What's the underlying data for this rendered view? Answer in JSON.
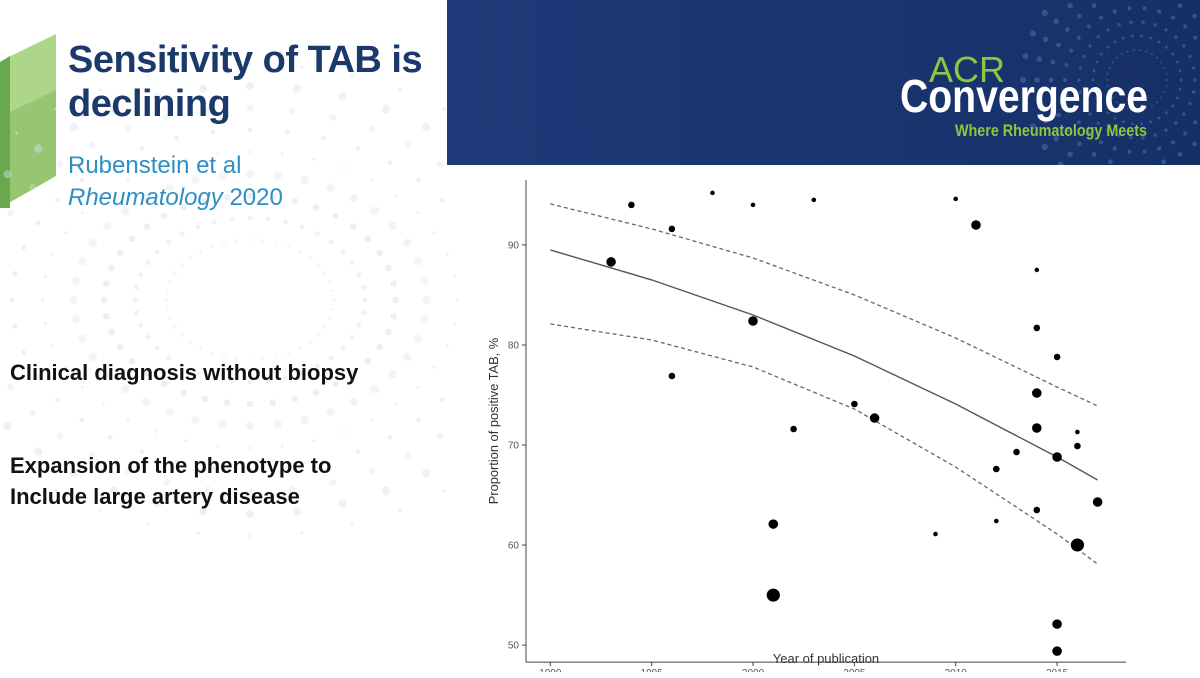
{
  "slide": {
    "title": "Sensitivity of TAB is declining",
    "citation_authors": "Rubenstein et al",
    "citation_journal": "Rheumatology",
    "citation_year": "2020",
    "bullets": [
      "Clinical diagnosis without biopsy",
      "Expansion of the phenotype to",
      "Include large artery disease"
    ]
  },
  "logo": {
    "top_text": "ACR",
    "main_text": "Convergence",
    "tagline": "Where Rheumatology Meets"
  },
  "colors": {
    "title": "#1b3a6b",
    "citation": "#2f8fc4",
    "banner": "#1e3a78",
    "logo_green": "#8dc63f",
    "deco_green": "#8cc063"
  },
  "chart_data": {
    "type": "scatter",
    "xlabel": "Year of publication",
    "ylabel": "Proportion of positive TAB, %",
    "xlim": [
      1988.8,
      2018.4
    ],
    "ylim": [
      48.3,
      96.5
    ],
    "xticks": [
      1990,
      1995,
      2000,
      2005,
      2010,
      2015
    ],
    "yticks": [
      50,
      60,
      70,
      80,
      90
    ],
    "grid": false,
    "points": [
      {
        "x": 1993,
        "y": 88.3,
        "size": "medium"
      },
      {
        "x": 1994,
        "y": 94.0,
        "size": "small"
      },
      {
        "x": 1996,
        "y": 91.6,
        "size": "small"
      },
      {
        "x": 1996,
        "y": 76.9,
        "size": "small"
      },
      {
        "x": 1998,
        "y": 95.2,
        "size": "xsmall"
      },
      {
        "x": 2000,
        "y": 94.0,
        "size": "xsmall"
      },
      {
        "x": 2000,
        "y": 82.4,
        "size": "medium"
      },
      {
        "x": 2001,
        "y": 62.1,
        "size": "medium"
      },
      {
        "x": 2001,
        "y": 55.0,
        "size": "large"
      },
      {
        "x": 2002,
        "y": 71.6,
        "size": "small"
      },
      {
        "x": 2003,
        "y": 94.5,
        "size": "xsmall"
      },
      {
        "x": 2005,
        "y": 74.1,
        "size": "small"
      },
      {
        "x": 2006,
        "y": 72.7,
        "size": "medium"
      },
      {
        "x": 2009,
        "y": 61.1,
        "size": "xsmall"
      },
      {
        "x": 2010,
        "y": 94.6,
        "size": "xsmall"
      },
      {
        "x": 2011,
        "y": 92.0,
        "size": "medium"
      },
      {
        "x": 2012,
        "y": 67.6,
        "size": "small"
      },
      {
        "x": 2012,
        "y": 62.4,
        "size": "xsmall"
      },
      {
        "x": 2013,
        "y": 69.3,
        "size": "small"
      },
      {
        "x": 2014,
        "y": 87.5,
        "size": "xsmall"
      },
      {
        "x": 2014,
        "y": 81.7,
        "size": "small"
      },
      {
        "x": 2014,
        "y": 75.2,
        "size": "medium"
      },
      {
        "x": 2014,
        "y": 71.7,
        "size": "medium"
      },
      {
        "x": 2014,
        "y": 63.5,
        "size": "small"
      },
      {
        "x": 2015,
        "y": 78.8,
        "size": "small"
      },
      {
        "x": 2015,
        "y": 68.8,
        "size": "medium"
      },
      {
        "x": 2015,
        "y": 52.1,
        "size": "medium"
      },
      {
        "x": 2015,
        "y": 49.4,
        "size": "medium"
      },
      {
        "x": 2016,
        "y": 71.3,
        "size": "xsmall"
      },
      {
        "x": 2016,
        "y": 69.9,
        "size": "small"
      },
      {
        "x": 2016,
        "y": 60.0,
        "size": "large"
      },
      {
        "x": 2017,
        "y": 64.3,
        "size": "medium"
      }
    ],
    "fit_line": {
      "style": "solid",
      "x": [
        1990,
        1995,
        2000,
        2005,
        2010,
        2015,
        2017
      ],
      "y": [
        89.5,
        86.5,
        83.0,
        78.9,
        74.1,
        68.8,
        66.5
      ]
    },
    "ci_upper": {
      "style": "dashed",
      "x": [
        1990,
        1995,
        2000,
        2005,
        2010,
        2015,
        2017
      ],
      "y": [
        94.1,
        91.6,
        88.7,
        85.0,
        80.7,
        75.8,
        73.9
      ]
    },
    "ci_lower": {
      "style": "dashed",
      "x": [
        1990,
        1995,
        2000,
        2005,
        2010,
        2015,
        2017
      ],
      "y": [
        82.1,
        80.5,
        77.8,
        73.6,
        67.8,
        61.1,
        58.1
      ]
    }
  }
}
